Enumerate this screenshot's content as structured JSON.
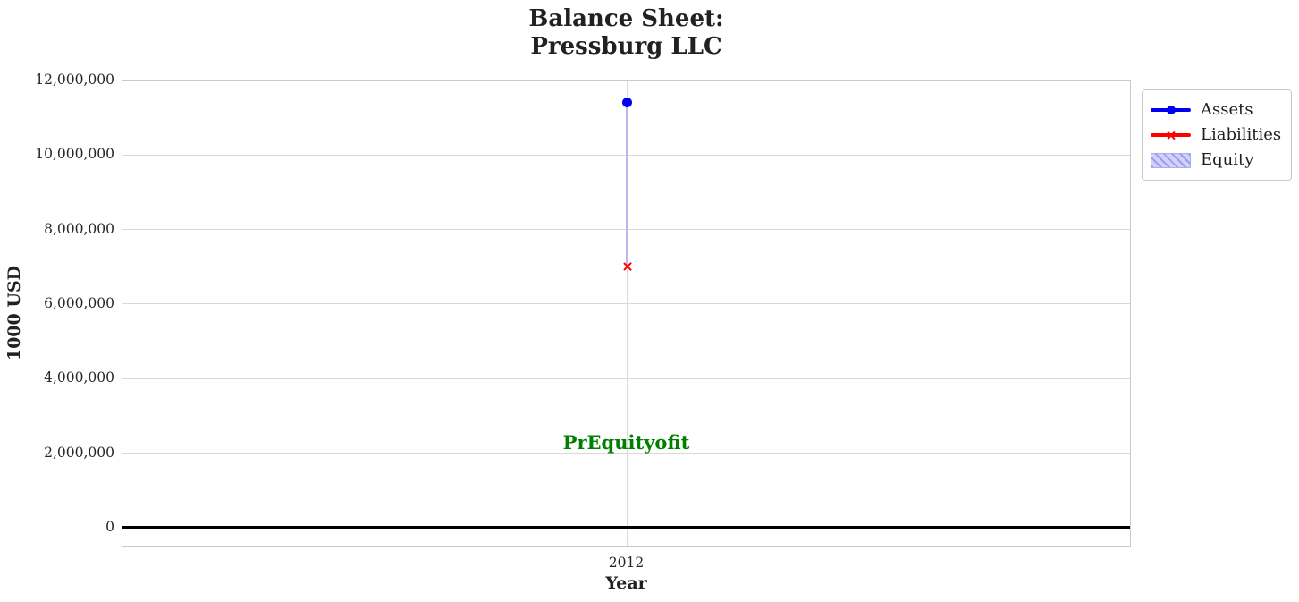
{
  "page": {
    "background": "#ffffff"
  },
  "chart_data": {
    "type": "line",
    "title": "Balance Sheet:\nPressburg LLC",
    "title_lines": [
      "Balance Sheet:",
      "Pressburg LLC"
    ],
    "xlabel": "Year",
    "ylabel": "1000 USD",
    "x_categories": [
      "2012"
    ],
    "ylim": [
      -530000,
      12000000
    ],
    "grid": true,
    "yticks": [
      {
        "value": 0,
        "label": "0"
      },
      {
        "value": 2000000,
        "label": "2,000,000"
      },
      {
        "value": 4000000,
        "label": "4,000,000"
      },
      {
        "value": 6000000,
        "label": "6,000,000"
      },
      {
        "value": 8000000,
        "label": "8,000,000"
      },
      {
        "value": 10000000,
        "label": "10,000,000"
      },
      {
        "value": 12000000,
        "label": "12,000,000"
      }
    ],
    "series": [
      {
        "name": "Assets",
        "type": "line",
        "marker": "circle",
        "color": "#0000ee",
        "x": [
          "2012"
        ],
        "values": [
          11400000
        ]
      },
      {
        "name": "Liabilities",
        "type": "line",
        "marker": "x",
        "color": "#ff0000",
        "x": [
          "2012"
        ],
        "values": [
          7000000
        ]
      },
      {
        "name": "Equity",
        "type": "bar",
        "hatch": "///",
        "color": "#c8c8f5",
        "edge_color": "#a9aef2",
        "x": [
          "2012"
        ],
        "bottom": [
          7000000
        ],
        "values": [
          4400000
        ]
      }
    ],
    "zero_line": {
      "value": 0,
      "color": "#000000"
    },
    "annotation": {
      "text": "PrEquityofit",
      "color": "#008000",
      "x": "2012",
      "y": 2250000
    },
    "legend": {
      "position": "outside-upper-right",
      "entries": [
        "Assets",
        "Liabilities",
        "Equity"
      ]
    }
  }
}
